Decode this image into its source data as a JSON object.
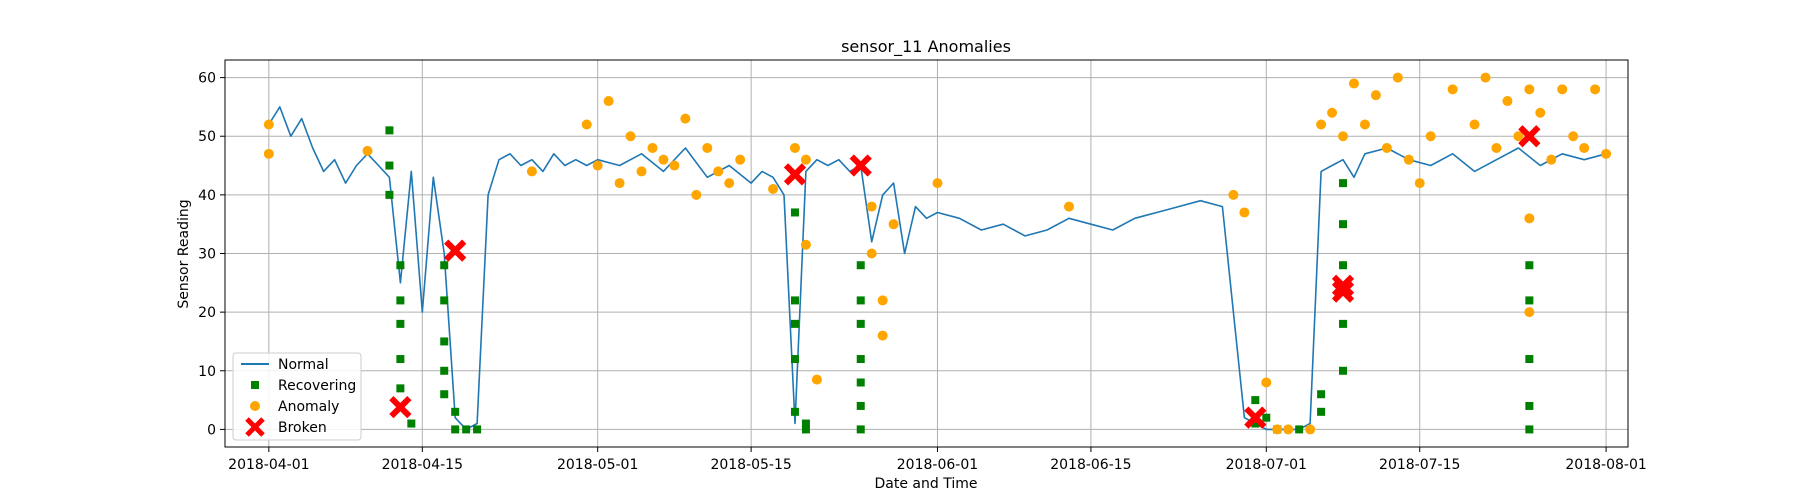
{
  "chart_data": {
    "type": "scatter",
    "title": "sensor_11 Anomalies",
    "xlabel": "Date and Time",
    "ylabel": "Sensor Reading",
    "xlim": [
      "2018-03-28",
      "2018-08-03"
    ],
    "ylim": [
      -3,
      63
    ],
    "x_ticks": [
      "2018-04-01",
      "2018-04-15",
      "2018-05-01",
      "2018-05-15",
      "2018-06-01",
      "2018-06-15",
      "2018-07-01",
      "2018-07-15",
      "2018-08-01"
    ],
    "y_ticks": [
      0,
      10,
      20,
      30,
      40,
      50,
      60
    ],
    "grid": true,
    "legend_position": "lower-left",
    "series": [
      {
        "name": "Normal",
        "kind": "line",
        "color": "#1f77b4",
        "x": [
          "2018-04-01",
          "2018-04-02",
          "2018-04-03",
          "2018-04-04",
          "2018-04-05",
          "2018-04-06",
          "2018-04-07",
          "2018-04-08",
          "2018-04-09",
          "2018-04-10",
          "2018-04-11",
          "2018-04-12",
          "2018-04-13",
          "2018-04-14",
          "2018-04-15",
          "2018-04-16",
          "2018-04-17",
          "2018-04-18",
          "2018-04-19",
          "2018-04-20",
          "2018-04-21",
          "2018-04-22",
          "2018-04-23",
          "2018-04-24",
          "2018-04-25",
          "2018-04-26",
          "2018-04-27",
          "2018-04-28",
          "2018-04-29",
          "2018-04-30",
          "2018-05-01",
          "2018-05-03",
          "2018-05-05",
          "2018-05-07",
          "2018-05-09",
          "2018-05-11",
          "2018-05-13",
          "2018-05-15",
          "2018-05-16",
          "2018-05-17",
          "2018-05-18",
          "2018-05-19",
          "2018-05-20",
          "2018-05-21",
          "2018-05-22",
          "2018-05-23",
          "2018-05-24",
          "2018-05-25",
          "2018-05-26",
          "2018-05-27",
          "2018-05-28",
          "2018-05-29",
          "2018-05-30",
          "2018-05-31",
          "2018-06-01",
          "2018-06-03",
          "2018-06-05",
          "2018-06-07",
          "2018-06-09",
          "2018-06-11",
          "2018-06-13",
          "2018-06-15",
          "2018-06-17",
          "2018-06-19",
          "2018-06-21",
          "2018-06-23",
          "2018-06-25",
          "2018-06-27",
          "2018-06-29",
          "2018-06-30",
          "2018-07-01",
          "2018-07-02",
          "2018-07-03",
          "2018-07-04",
          "2018-07-05",
          "2018-07-06",
          "2018-07-07",
          "2018-07-08",
          "2018-07-09",
          "2018-07-10",
          "2018-07-12",
          "2018-07-14",
          "2018-07-16",
          "2018-07-18",
          "2018-07-20",
          "2018-07-22",
          "2018-07-24",
          "2018-07-26",
          "2018-07-28",
          "2018-07-30",
          "2018-08-01"
        ],
        "y": [
          52,
          55,
          50,
          53,
          48,
          44,
          46,
          42,
          45,
          47,
          45,
          43,
          25,
          44,
          20,
          43,
          30,
          2,
          0,
          1,
          40,
          46,
          47,
          45,
          46,
          44,
          47,
          45,
          46,
          45,
          46,
          45,
          47,
          44,
          48,
          43,
          45,
          42,
          44,
          43,
          40,
          1,
          44,
          46,
          45,
          46,
          44,
          45,
          32,
          40,
          42,
          30,
          38,
          36,
          37,
          36,
          34,
          35,
          33,
          34,
          36,
          35,
          34,
          36,
          37,
          38,
          39,
          38,
          2,
          1,
          0,
          0,
          0,
          0,
          1,
          44,
          45,
          46,
          43,
          47,
          48,
          46,
          45,
          47,
          44,
          46,
          48,
          45,
          47,
          46,
          47
        ]
      },
      {
        "name": "Recovering",
        "kind": "marker",
        "marker": "square",
        "color": "#008000",
        "x": [
          "2018-04-12",
          "2018-04-12",
          "2018-04-12",
          "2018-04-13",
          "2018-04-13",
          "2018-04-13",
          "2018-04-13",
          "2018-04-13",
          "2018-04-14",
          "2018-04-17",
          "2018-04-17",
          "2018-04-17",
          "2018-04-17",
          "2018-04-17",
          "2018-04-18",
          "2018-04-18",
          "2018-04-19",
          "2018-04-20",
          "2018-05-19",
          "2018-05-19",
          "2018-05-19",
          "2018-05-19",
          "2018-05-19",
          "2018-05-20",
          "2018-05-20",
          "2018-05-25",
          "2018-05-25",
          "2018-05-25",
          "2018-05-25",
          "2018-05-25",
          "2018-05-25",
          "2018-05-25",
          "2018-06-30",
          "2018-06-30",
          "2018-07-01",
          "2018-07-02",
          "2018-07-04",
          "2018-07-06",
          "2018-07-06",
          "2018-07-08",
          "2018-07-08",
          "2018-07-08",
          "2018-07-08",
          "2018-07-08",
          "2018-07-25",
          "2018-07-25",
          "2018-07-25",
          "2018-07-25",
          "2018-07-25"
        ],
        "y": [
          51,
          45,
          40,
          28,
          22,
          18,
          12,
          7,
          1,
          28,
          22,
          15,
          10,
          6,
          3,
          0,
          0,
          0,
          37,
          22,
          18,
          12,
          3,
          1,
          0,
          28,
          22,
          18,
          12,
          8,
          4,
          0,
          5,
          1,
          2,
          0,
          0,
          6,
          3,
          42,
          35,
          28,
          18,
          10,
          28,
          22,
          12,
          4,
          0
        ]
      },
      {
        "name": "Anomaly",
        "kind": "marker",
        "marker": "circle",
        "color": "#ffa500",
        "x": [
          "2018-04-01",
          "2018-04-01",
          "2018-04-10",
          "2018-04-25",
          "2018-04-30",
          "2018-05-01",
          "2018-05-02",
          "2018-05-03",
          "2018-05-04",
          "2018-05-05",
          "2018-05-06",
          "2018-05-07",
          "2018-05-08",
          "2018-05-09",
          "2018-05-10",
          "2018-05-11",
          "2018-05-12",
          "2018-05-13",
          "2018-05-14",
          "2018-05-17",
          "2018-05-19",
          "2018-05-20",
          "2018-05-20",
          "2018-05-21",
          "2018-05-26",
          "2018-05-26",
          "2018-05-27",
          "2018-05-27",
          "2018-05-28",
          "2018-06-01",
          "2018-06-13",
          "2018-06-28",
          "2018-06-29",
          "2018-07-01",
          "2018-07-02",
          "2018-07-03",
          "2018-07-05",
          "2018-07-06",
          "2018-07-07",
          "2018-07-08",
          "2018-07-09",
          "2018-07-10",
          "2018-07-11",
          "2018-07-12",
          "2018-07-13",
          "2018-07-14",
          "2018-07-15",
          "2018-07-16",
          "2018-07-18",
          "2018-07-20",
          "2018-07-21",
          "2018-07-22",
          "2018-07-23",
          "2018-07-24",
          "2018-07-25",
          "2018-07-25",
          "2018-07-25",
          "2018-07-26",
          "2018-07-27",
          "2018-07-28",
          "2018-07-29",
          "2018-07-30",
          "2018-07-31",
          "2018-08-01"
        ],
        "y": [
          52,
          47,
          47.5,
          44,
          52,
          45,
          56,
          42,
          50,
          44,
          48,
          46,
          45,
          53,
          40,
          48,
          44,
          42,
          46,
          41,
          48,
          46,
          31.5,
          8.5,
          38,
          30,
          22,
          16,
          35,
          42,
          38,
          40,
          37,
          8,
          0,
          0,
          0,
          52,
          54,
          50,
          59,
          52,
          57,
          48,
          60,
          46,
          42,
          50,
          58,
          52,
          60,
          48,
          56,
          50,
          58,
          36,
          20,
          54,
          46,
          58,
          50,
          48,
          58,
          47
        ]
      },
      {
        "name": "Broken",
        "kind": "marker",
        "marker": "x",
        "color": "#ff0000",
        "x": [
          "2018-04-13",
          "2018-04-18",
          "2018-05-19",
          "2018-05-25",
          "2018-06-30",
          "2018-07-08",
          "2018-07-08",
          "2018-07-25"
        ],
        "y": [
          3.8,
          30.5,
          43.5,
          45,
          2,
          24.5,
          23.5,
          50
        ]
      }
    ]
  }
}
